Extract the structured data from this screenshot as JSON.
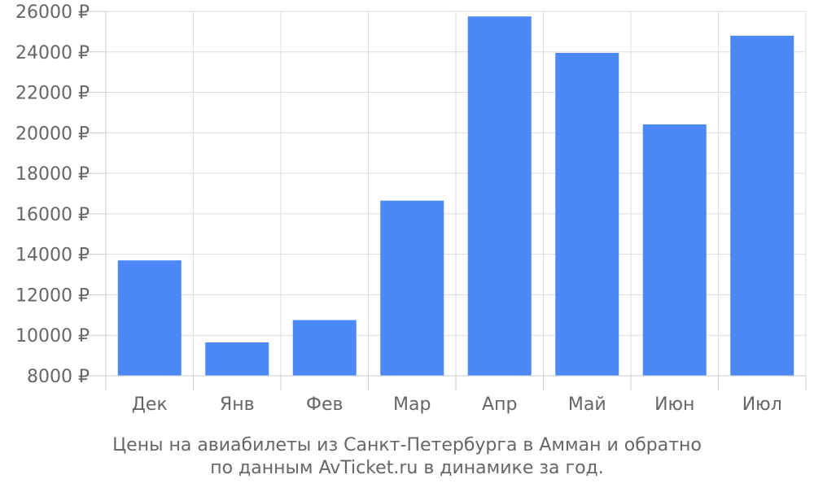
{
  "chart_data": {
    "type": "bar",
    "categories": [
      "Дек",
      "Янв",
      "Фев",
      "Мар",
      "Апр",
      "Май",
      "Июн",
      "Июл"
    ],
    "values": [
      13700,
      9650,
      10750,
      16650,
      25750,
      23950,
      20420,
      24800
    ],
    "ylim": [
      8000,
      26000
    ],
    "yticks": [
      8000,
      10000,
      12000,
      14000,
      16000,
      18000,
      20000,
      22000,
      24000,
      26000
    ],
    "ytick_suffix": " ₽",
    "grid": true,
    "bar_color": "#4d88f9",
    "caption": [
      "Цены на авиабилеты из Санкт-Петербурга в Амман и обратно",
      "по данным AvTicket.ru в динамике за год."
    ]
  }
}
